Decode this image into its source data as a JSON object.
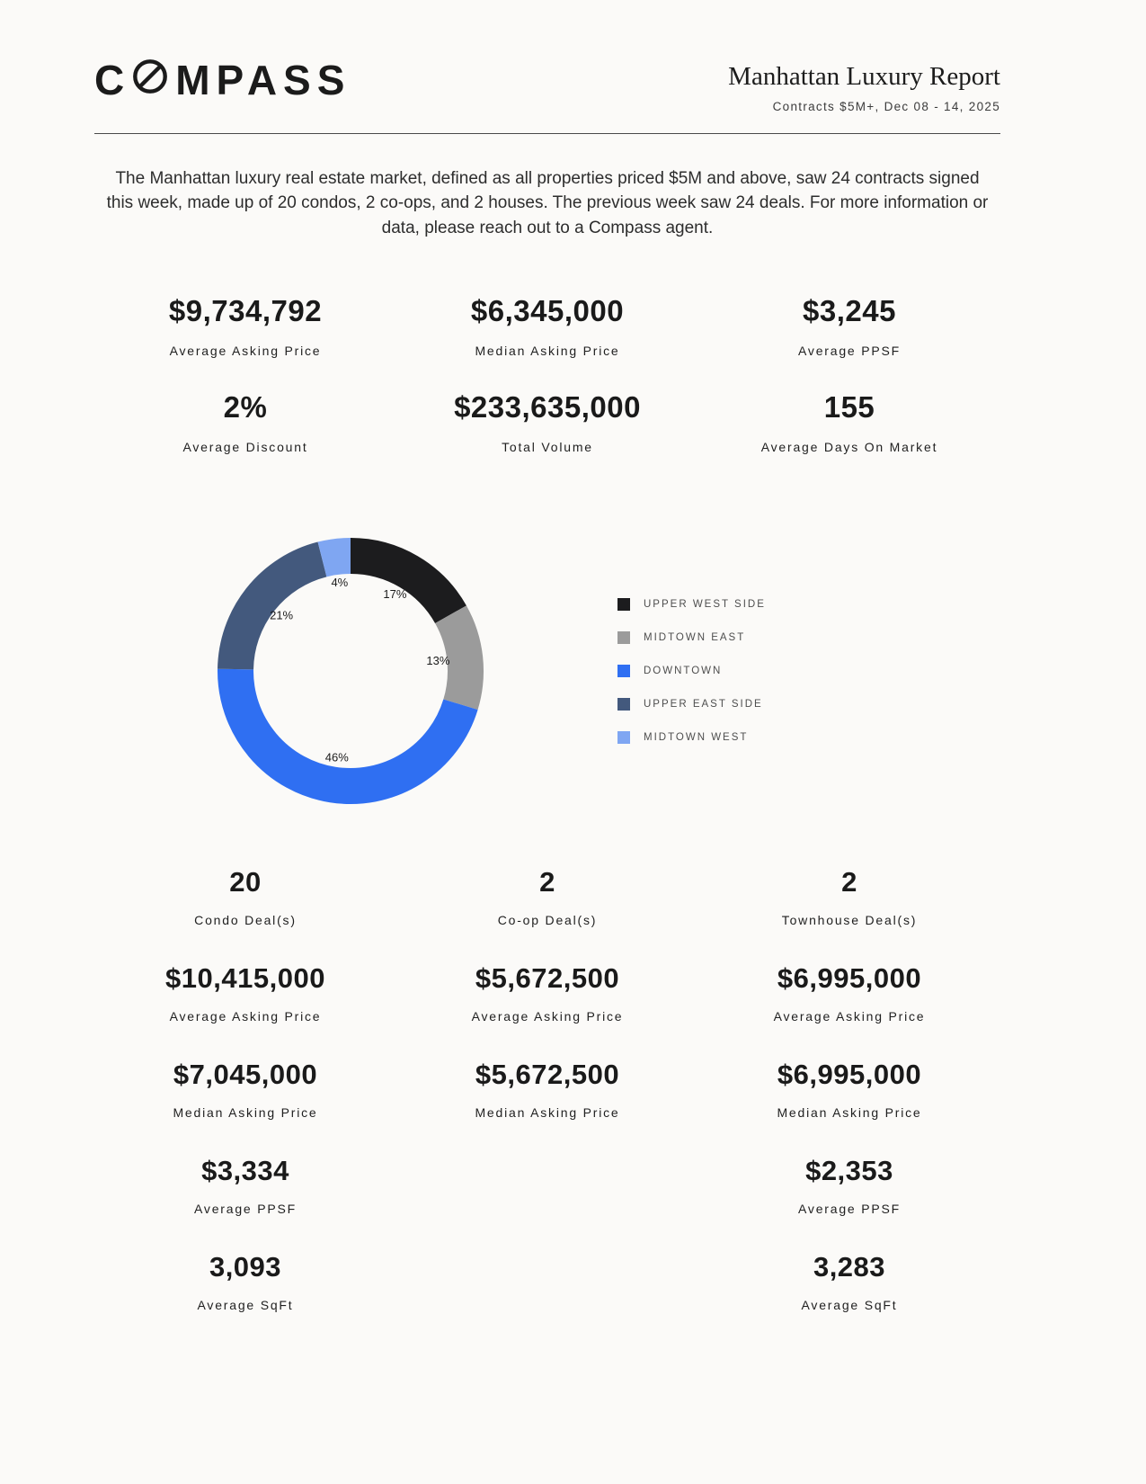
{
  "brand": {
    "name": "COMPASS",
    "part1": "C",
    "part2": "MPASS"
  },
  "header": {
    "title": "Manhattan Luxury Report",
    "subtitle": "Contracts $5M+, Dec 08 - 14, 2025"
  },
  "intro": "The Manhattan luxury real estate market, defined as all properties priced $5M and above, saw 24 contracts signed this week, made up of 20 condos, 2 co-ops, and 2 houses. The previous week saw 24 deals. For more information or data, please reach out to a Compass agent.",
  "summary_stats": [
    {
      "value": "$9,734,792",
      "label": "Average Asking Price"
    },
    {
      "value": "$6,345,000",
      "label": "Median Asking Price"
    },
    {
      "value": "$3,245",
      "label": "Average PPSF"
    },
    {
      "value": "2%",
      "label": "Average Discount"
    },
    {
      "value": "$233,635,000",
      "label": "Total Volume"
    },
    {
      "value": "155",
      "label": "Average Days On Market"
    }
  ],
  "chart_data": {
    "type": "pie",
    "style": "donut",
    "categories": [
      "UPPER WEST SIDE",
      "MIDTOWN EAST",
      "DOWNTOWN",
      "UPPER EAST SIDE",
      "MIDTOWN WEST"
    ],
    "values": [
      17,
      13,
      46,
      21,
      4
    ],
    "unit": "%",
    "colors": [
      "#1c1c1e",
      "#9b9b9b",
      "#2f6ff2",
      "#43597d",
      "#7fa6f2"
    ],
    "legend_position": "right"
  },
  "property_types": [
    {
      "count": "20",
      "type_label": "Condo Deal(s)",
      "avg_asking": {
        "value": "$10,415,000",
        "label": "Average Asking Price"
      },
      "median_asking": {
        "value": "$7,045,000",
        "label": "Median Asking Price"
      },
      "avg_ppsf": {
        "value": "$3,334",
        "label": "Average PPSF"
      },
      "avg_sqft": {
        "value": "3,093",
        "label": "Average SqFt"
      }
    },
    {
      "count": "2",
      "type_label": "Co-op Deal(s)",
      "avg_asking": {
        "value": "$5,672,500",
        "label": "Average Asking Price"
      },
      "median_asking": {
        "value": "$5,672,500",
        "label": "Median Asking Price"
      }
    },
    {
      "count": "2",
      "type_label": "Townhouse Deal(s)",
      "avg_asking": {
        "value": "$6,995,000",
        "label": "Average Asking Price"
      },
      "median_asking": {
        "value": "$6,995,000",
        "label": "Median Asking Price"
      },
      "avg_ppsf": {
        "value": "$2,353",
        "label": "Average PPSF"
      },
      "avg_sqft": {
        "value": "3,283",
        "label": "Average SqFt"
      }
    }
  ]
}
